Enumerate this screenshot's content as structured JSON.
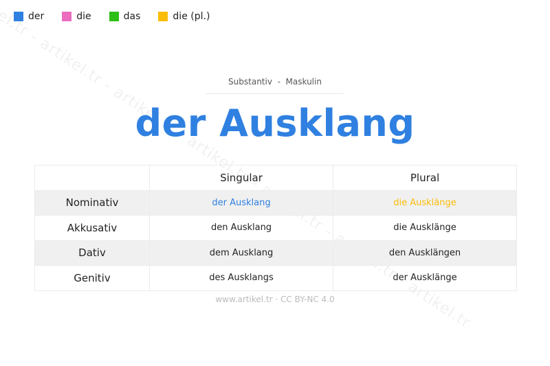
{
  "watermark": "artikel.tr - artikel.tr - artikel.tr - artikel.tr - artikel.tr - artikel.tr - artikel.tr",
  "legend": [
    {
      "label": "der",
      "color": "#2f80e0"
    },
    {
      "label": "die",
      "color": "#ec6cc0"
    },
    {
      "label": "das",
      "color": "#2dbf16"
    },
    {
      "label": "die (pl.)",
      "color": "#fbbd08"
    }
  ],
  "subtitle": "Substantiv  -  Maskulin",
  "title": "der Ausklang",
  "table": {
    "headers": [
      "",
      "Singular",
      "Plural"
    ],
    "rows": [
      {
        "case": "Nominativ",
        "singular": "der Ausklang",
        "plural": "die Ausklänge"
      },
      {
        "case": "Akkusativ",
        "singular": "den Ausklang",
        "plural": "die Ausklänge"
      },
      {
        "case": "Dativ",
        "singular": "dem Ausklang",
        "plural": "den Ausklängen"
      },
      {
        "case": "Genitiv",
        "singular": "des Ausklangs",
        "plural": "der Ausklänge"
      }
    ],
    "nominativ_singular_color": "#2f80e0",
    "nominativ_plural_color": "#fbbd08"
  },
  "footer": "www.artikel.tr · CC BY-NC 4.0"
}
